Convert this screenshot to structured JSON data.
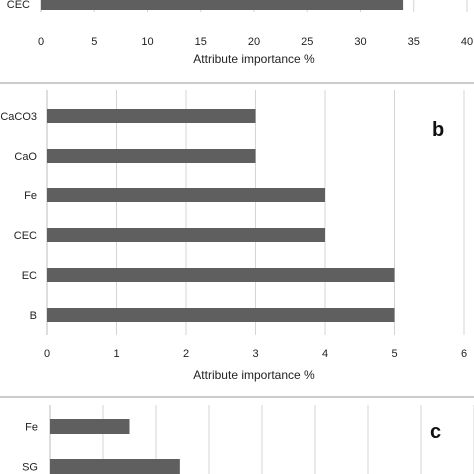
{
  "colors": {
    "bar": "#5f5f5f",
    "grid": "#d4d4d4"
  },
  "chart_data": [
    {
      "type": "bar",
      "orientation": "horizontal",
      "panel_label": "",
      "categories": [
        "CEC"
      ],
      "values": [
        34
      ],
      "xlabel": "Attribute importance %",
      "ylabel": "",
      "xlim": [
        0,
        40
      ],
      "xticks": [
        0,
        5,
        10,
        15,
        20,
        25,
        30,
        35,
        40
      ],
      "grid": true
    },
    {
      "type": "bar",
      "orientation": "horizontal",
      "panel_label": "b",
      "categories": [
        "CaCO3",
        "CaO",
        "Fe",
        "CEC",
        "EC",
        "B"
      ],
      "values": [
        3,
        3,
        4,
        4,
        5,
        5
      ],
      "xlabel": "Attribute importance %",
      "ylabel": "",
      "xlim": [
        0,
        6
      ],
      "xticks": [
        0,
        1,
        2,
        3,
        4,
        5,
        6
      ],
      "grid": true
    },
    {
      "type": "bar",
      "orientation": "horizontal",
      "panel_label": "c",
      "categories": [
        "Fe",
        "SG"
      ],
      "values": [
        3,
        4.9
      ],
      "xlabel": "",
      "ylabel": "",
      "xlim": [
        0,
        16
      ],
      "grid": true
    }
  ]
}
